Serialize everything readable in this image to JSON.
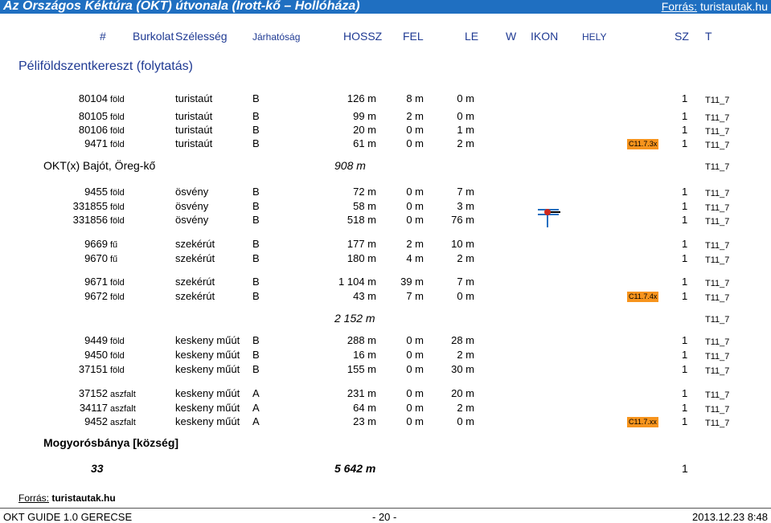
{
  "doc_title": "Az Országos Kéktúra (OKT) útvonala (Írott-kő – Hollóháza)",
  "source_top": {
    "label": "Forrás:",
    "value": "turistautak.hu"
  },
  "headers": [
    "#",
    "Burkolat",
    "Szélesség",
    "Járhatóság",
    "HOSSZ",
    "FEL",
    "LE",
    "W",
    "IKON",
    "HELY",
    "SZ",
    "T"
  ],
  "section_title": "Péliföldszentkereszt (folytatás)",
  "groups": [
    {
      "rows": [
        {
          "id": "80104",
          "surface": "föld",
          "type": "turistaút",
          "grade": "B",
          "length": "126 m",
          "up": "8 m",
          "down": "0 m",
          "code": "",
          "sz": "1",
          "t": "T11_7"
        },
        {
          "id": "80105",
          "surface": "föld",
          "type": "turistaút",
          "grade": "B",
          "length": "99 m",
          "up": "2 m",
          "down": "0 m",
          "code": "",
          "sz": "1",
          "t": "T11_7"
        },
        {
          "id": "80106",
          "surface": "föld",
          "type": "turistaút",
          "grade": "B",
          "length": "20 m",
          "up": "0 m",
          "down": "1 m",
          "code": "",
          "sz": "1",
          "t": "T11_7"
        },
        {
          "id": "9471",
          "surface": "föld",
          "type": "turistaút",
          "grade": "B",
          "length": "61 m",
          "up": "0 m",
          "down": "2 m",
          "code": "C11.7.3x",
          "sz": "1",
          "t": "T11_7"
        }
      ]
    },
    {
      "subheader": {
        "name": "OKT(x) Bajót, Öreg-kő",
        "total": "908 m",
        "t": "T11_7"
      }
    },
    {
      "rows": [
        {
          "id": "9455",
          "surface": "föld",
          "type": "ösvény",
          "grade": "B",
          "length": "72 m",
          "up": "0 m",
          "down": "7 m",
          "code": "",
          "sz": "1",
          "t": "T11_7"
        },
        {
          "id": "331855",
          "surface": "föld",
          "type": "ösvény",
          "grade": "B",
          "length": "58 m",
          "up": "0 m",
          "down": "3 m",
          "code": "",
          "sz": "1",
          "t": "T11_7"
        },
        {
          "id": "331856",
          "surface": "föld",
          "type": "ösvény",
          "grade": "B",
          "length": "518 m",
          "up": "0 m",
          "down": "76 m",
          "code": "",
          "sz": "1",
          "t": "T11_7"
        }
      ]
    },
    {
      "rows": [
        {
          "id": "9669",
          "surface": "fű",
          "type": "szekérút",
          "grade": "B",
          "length": "177 m",
          "up": "2 m",
          "down": "10 m",
          "code": "",
          "sz": "1",
          "t": "T11_7"
        },
        {
          "id": "9670",
          "surface": "fű",
          "type": "szekérút",
          "grade": "B",
          "length": "180 m",
          "up": "4 m",
          "down": "2 m",
          "code": "",
          "sz": "1",
          "t": "T11_7"
        }
      ]
    },
    {
      "rows": [
        {
          "id": "9671",
          "surface": "föld",
          "type": "szekérút",
          "grade": "B",
          "length": "1 104 m",
          "up": "39 m",
          "down": "7 m",
          "code": "",
          "sz": "1",
          "t": "T11_7"
        },
        {
          "id": "9672",
          "surface": "föld",
          "type": "szekérút",
          "grade": "B",
          "length": "43 m",
          "up": "7 m",
          "down": "0 m",
          "code": "C11.7.4x",
          "sz": "1",
          "t": "T11_7"
        }
      ]
    },
    {
      "subheader": {
        "name": "",
        "total": "2 152 m",
        "t": "T11_7"
      }
    },
    {
      "rows": [
        {
          "id": "9449",
          "surface": "föld",
          "type": "keskeny műút",
          "grade": "B",
          "length": "288 m",
          "up": "0 m",
          "down": "28 m",
          "code": "",
          "sz": "1",
          "t": "T11_7"
        },
        {
          "id": "9450",
          "surface": "föld",
          "type": "keskeny műút",
          "grade": "B",
          "length": "16 m",
          "up": "0 m",
          "down": "2 m",
          "code": "",
          "sz": "1",
          "t": "T11_7"
        },
        {
          "id": "37151",
          "surface": "föld",
          "type": "keskeny műút",
          "grade": "B",
          "length": "155 m",
          "up": "0 m",
          "down": "30 m",
          "code": "",
          "sz": "1",
          "t": "T11_7"
        }
      ]
    },
    {
      "rows": [
        {
          "id": "37152",
          "surface": "aszfalt",
          "type": "keskeny műút",
          "grade": "A",
          "length": "231 m",
          "up": "0 m",
          "down": "20 m",
          "code": "",
          "sz": "1",
          "t": "T11_7"
        },
        {
          "id": "34117",
          "surface": "aszfalt",
          "type": "keskeny műút",
          "grade": "A",
          "length": "64 m",
          "up": "0 m",
          "down": "2 m",
          "code": "",
          "sz": "1",
          "t": "T11_7"
        },
        {
          "id": "9452",
          "surface": "aszfalt",
          "type": "keskeny műút",
          "grade": "A",
          "length": "23 m",
          "up": "0 m",
          "down": "0 m",
          "code": "C11.7.xx",
          "sz": "1",
          "t": "T11_7"
        }
      ]
    }
  ],
  "end_place": "Mogyorósbánya [község]",
  "totals": {
    "count": "33",
    "length": "5 642 m",
    "sz": "1"
  },
  "source_bottom": {
    "label": "Forrás:",
    "value": "turistautak.hu"
  },
  "footer": {
    "left": "OKT GUIDE 1.0 GERECSE",
    "center": "- 20 -",
    "right": "2013.12.23  8:48"
  },
  "colors": {
    "title_bg": "#1f6fc1",
    "header_text": "#1f3a93",
    "badge": "#f7941d",
    "icon_red": "#d0281c",
    "icon_blue": "#1f6fc1"
  }
}
